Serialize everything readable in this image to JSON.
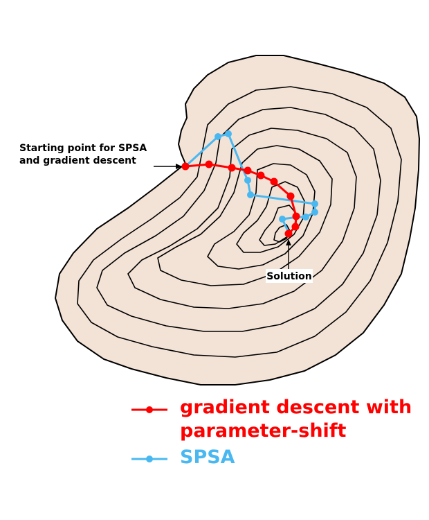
{
  "annotations": {
    "start_line1": "Starting point for SPSA",
    "start_line2": "and gradient descent",
    "solution": "Solution"
  },
  "legend": {
    "gd_line1": "gradient descent with",
    "gd_line2": "parameter-shift",
    "spsa": "SPSA"
  },
  "colors": {
    "landscape_fill": "#f3e2d6",
    "contour": "#000000",
    "gradient_descent": "#ff0000",
    "spsa": "#4ab8f0"
  }
}
